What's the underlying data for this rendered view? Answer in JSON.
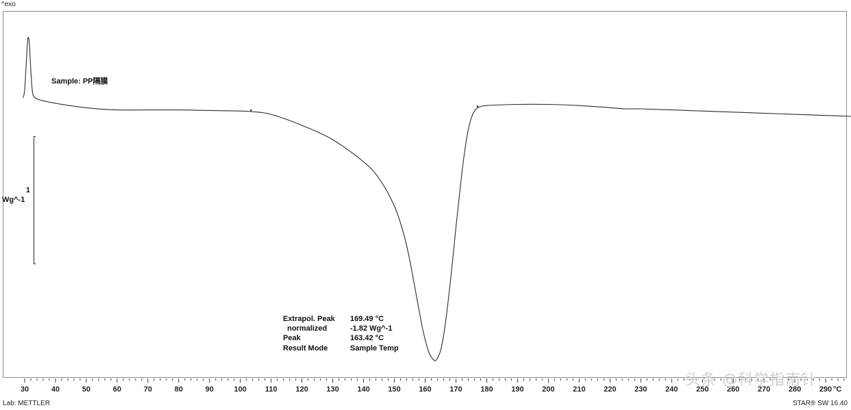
{
  "header": {
    "exo_label": "^exo"
  },
  "footer": {
    "lab": "Lab: METTLER",
    "software": "STAR® SW 16.40"
  },
  "watermark": "头条 @科学指南针",
  "scale": {
    "value": "1",
    "unit": "Wg^-1"
  },
  "sample_label": "Sample: PP隔膜",
  "results": [
    {
      "label": "Extrapol. Peak",
      "value": "169.49 °C"
    },
    {
      "label": "  normalized",
      "value": "-1.82 Wg^-1"
    },
    {
      "label": "Peak",
      "value": "163.42 °C"
    },
    {
      "label": "Result Mode",
      "value": "Sample Temp"
    }
  ],
  "chart_data": {
    "type": "line",
    "title": "",
    "xlabel": "°C",
    "ylabel": "Wg^-1",
    "xlim": [
      29,
      306
    ],
    "ylim": [
      -2.45,
      0.75
    ],
    "x_ticks": [
      30,
      40,
      50,
      60,
      70,
      80,
      90,
      100,
      110,
      120,
      130,
      140,
      150,
      160,
      170,
      180,
      190,
      200,
      210,
      220,
      230,
      240,
      250,
      260,
      270,
      280,
      290
    ],
    "x_unit_label": "°C",
    "grid": false,
    "colors": {
      "line": "#2a2a2a"
    },
    "series": [
      {
        "x": [
          29.5,
          30,
          30.5,
          31,
          31.5,
          32,
          32.5,
          33,
          34,
          35,
          40,
          50,
          60,
          70,
          80,
          90,
          100,
          103.5,
          110,
          120,
          130,
          140,
          145,
          150,
          153,
          155,
          157,
          159,
          160,
          161,
          162,
          163,
          163.42,
          164,
          165,
          166,
          167,
          168,
          169,
          170,
          171,
          172,
          173,
          174,
          175,
          176,
          177,
          178,
          180,
          190,
          200,
          210,
          220,
          225,
          230,
          240,
          250,
          260,
          270,
          280,
          290,
          300,
          305
        ],
        "y": [
          0.05,
          0.12,
          0.35,
          0.58,
          0.55,
          0.3,
          0.11,
          0.06,
          0.04,
          0.03,
          0.0,
          -0.04,
          -0.06,
          -0.06,
          -0.06,
          -0.065,
          -0.07,
          -0.075,
          -0.1,
          -0.2,
          -0.33,
          -0.53,
          -0.68,
          -0.93,
          -1.18,
          -1.42,
          -1.72,
          -2.02,
          -2.14,
          -2.24,
          -2.3,
          -2.33,
          -2.33,
          -2.31,
          -2.24,
          -2.1,
          -1.9,
          -1.66,
          -1.4,
          -1.12,
          -0.86,
          -0.61,
          -0.4,
          -0.24,
          -0.13,
          -0.07,
          -0.04,
          -0.03,
          -0.02,
          -0.01,
          -0.01,
          -0.02,
          -0.04,
          -0.05,
          -0.05,
          -0.06,
          -0.07,
          -0.08,
          -0.09,
          -0.1,
          -0.11,
          -0.12,
          -0.13
        ]
      }
    ],
    "markers_x": [
      103.5,
      177
    ]
  }
}
